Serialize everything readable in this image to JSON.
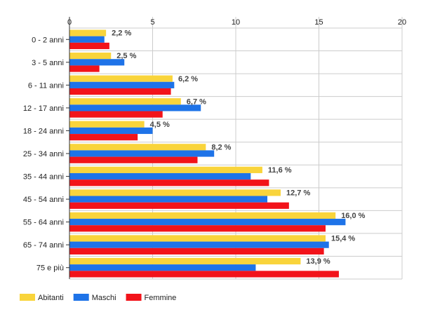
{
  "chart_data": {
    "type": "bar",
    "orientation": "horizontal",
    "categories": [
      "0 - 2 anni",
      "3 - 5 anni",
      "6 - 11 anni",
      "12 - 17 anni",
      "18 - 24 anni",
      "25 - 34 anni",
      "35 - 44 anni",
      "45 - 54 anni",
      "55 - 64 anni",
      "65 - 74 anni",
      "75 e più"
    ],
    "series": [
      {
        "name": "Abitanti",
        "color": "#f9d43b",
        "values": [
          2.2,
          2.5,
          6.2,
          6.7,
          4.5,
          8.2,
          11.6,
          12.7,
          16.0,
          15.4,
          13.9
        ]
      },
      {
        "name": "Maschi",
        "color": "#1e73e8",
        "values": [
          2.1,
          3.3,
          6.3,
          7.9,
          5.0,
          8.7,
          10.9,
          11.9,
          16.6,
          15.6,
          11.2
        ]
      },
      {
        "name": "Femmine",
        "color": "#f2131a",
        "values": [
          2.4,
          1.8,
          6.1,
          5.6,
          4.1,
          7.7,
          12.0,
          13.2,
          15.4,
          15.3,
          16.2
        ]
      }
    ],
    "data_labels": [
      "2,2 %",
      "2,5 %",
      "6,2 %",
      "6,7 %",
      "4,5 %",
      "8,2 %",
      "11,6 %",
      "12,7 %",
      "16,0 %",
      "15,4 %",
      "13,9 %"
    ],
    "x_ticks": [
      "0",
      "5",
      "10",
      "15",
      "20"
    ],
    "xlim": [
      0,
      20
    ],
    "grid": true,
    "legend_position": "bottom-left"
  }
}
